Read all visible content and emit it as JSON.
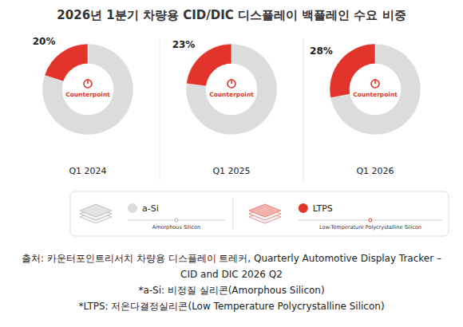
{
  "title": "2026년 1분기 차량용 CID/DIC 디스플레이 백플레인 수요 비중",
  "logo": "Counterpoint",
  "chart_data": [
    {
      "type": "pie",
      "title": "Q1 2024",
      "categories": [
        "a-Si",
        "LTPS"
      ],
      "values": [
        80,
        20
      ],
      "colors": [
        "#dcdcdc",
        "#e3342b"
      ],
      "value_labels": [
        null,
        "20%"
      ],
      "data_labels": true,
      "legend": "bottom"
    },
    {
      "type": "pie",
      "title": "Q1 2025",
      "categories": [
        "a-Si",
        "LTPS"
      ],
      "values": [
        77,
        23
      ],
      "colors": [
        "#dcdcdc",
        "#e3342b"
      ],
      "value_labels": [
        null,
        "23%"
      ],
      "data_labels": true,
      "legend": "bottom"
    },
    {
      "type": "pie",
      "title": "Q1 2026",
      "categories": [
        "a-Si",
        "LTPS"
      ],
      "values": [
        72,
        28
      ],
      "colors": [
        "#dcdcdc",
        "#e3342b"
      ],
      "value_labels": [
        null,
        "28%"
      ],
      "data_labels": true,
      "legend": "bottom"
    }
  ],
  "legend_descriptions": [
    "Amorphous Silicon",
    "Low-Temperature Polycrystalline Silicon"
  ],
  "notes": [
    "출처: 카운터포인트리서치 차량용 디스플레이 트레커, Quarterly Automotive Display Tracker – CID and DIC 2026 Q2",
    "*a-Si: 비정질 실리콘(Amorphous Silicon)",
    "*LTPS: 저온다결정실리콘(Low Temperature Polycrystalline Silicon)"
  ]
}
